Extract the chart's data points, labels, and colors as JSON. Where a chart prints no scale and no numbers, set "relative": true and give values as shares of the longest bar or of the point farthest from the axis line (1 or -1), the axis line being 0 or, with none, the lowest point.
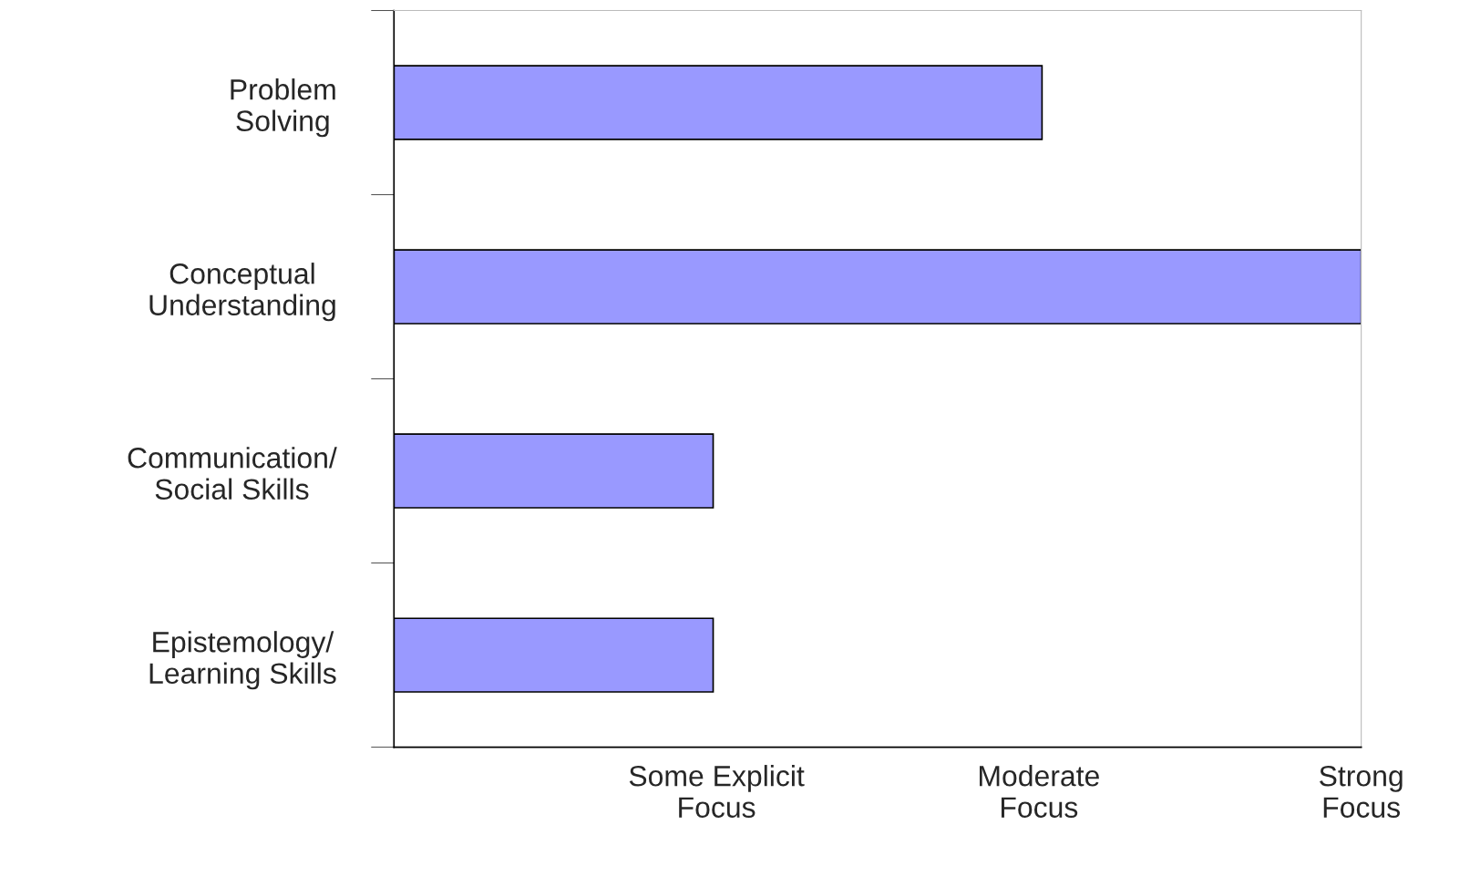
{
  "chart_data": {
    "type": "bar",
    "orientation": "horizontal",
    "relative": true,
    "categories": [
      "Problem\nSolving",
      "Conceptual\nUnderstanding",
      "Communication/\nSocial Skills",
      "Epistemology/\nLearning Skills"
    ],
    "values": [
      0.67,
      1,
      0.33,
      0.33
    ],
    "color": "#9999ff",
    "annotations": [
      "Some Explicit\nFocus",
      "Moderate\nFocus",
      "Strong\nFocus"
    ],
    "grid": false
  }
}
